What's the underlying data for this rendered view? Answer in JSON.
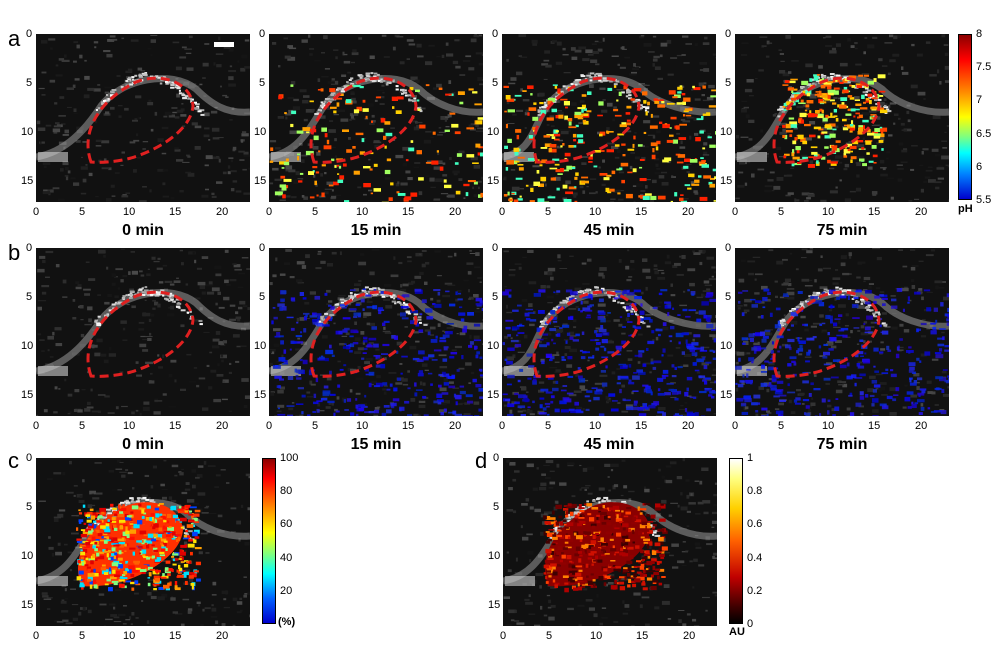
{
  "panel_letters": {
    "a": "a",
    "b": "b",
    "c": "c",
    "d": "d"
  },
  "times": [
    "0 min",
    "15 min",
    "45 min",
    "75 min"
  ],
  "x_ticks": [
    "0",
    "5",
    "10",
    "15",
    "20"
  ],
  "y_ticks": [
    "0",
    "5",
    "10",
    "15"
  ],
  "colorbar_ph": {
    "ticks": [
      "8",
      "7.5",
      "7",
      "6.5",
      "6",
      "5.5"
    ],
    "unit": "pH"
  },
  "colorbar_pct": {
    "ticks": [
      "100",
      "80",
      "60",
      "40",
      "20"
    ],
    "unit": "(%)"
  },
  "colorbar_au": {
    "ticks": [
      "1",
      "0.8",
      "0.6",
      "0.4",
      "0.2",
      "0"
    ],
    "unit": "AU"
  },
  "colors": {
    "outline": "#e02020",
    "ph_top": "#8b0000",
    "ph_bottom": "#0000ff",
    "overlay_b": "#1a2aff"
  }
}
